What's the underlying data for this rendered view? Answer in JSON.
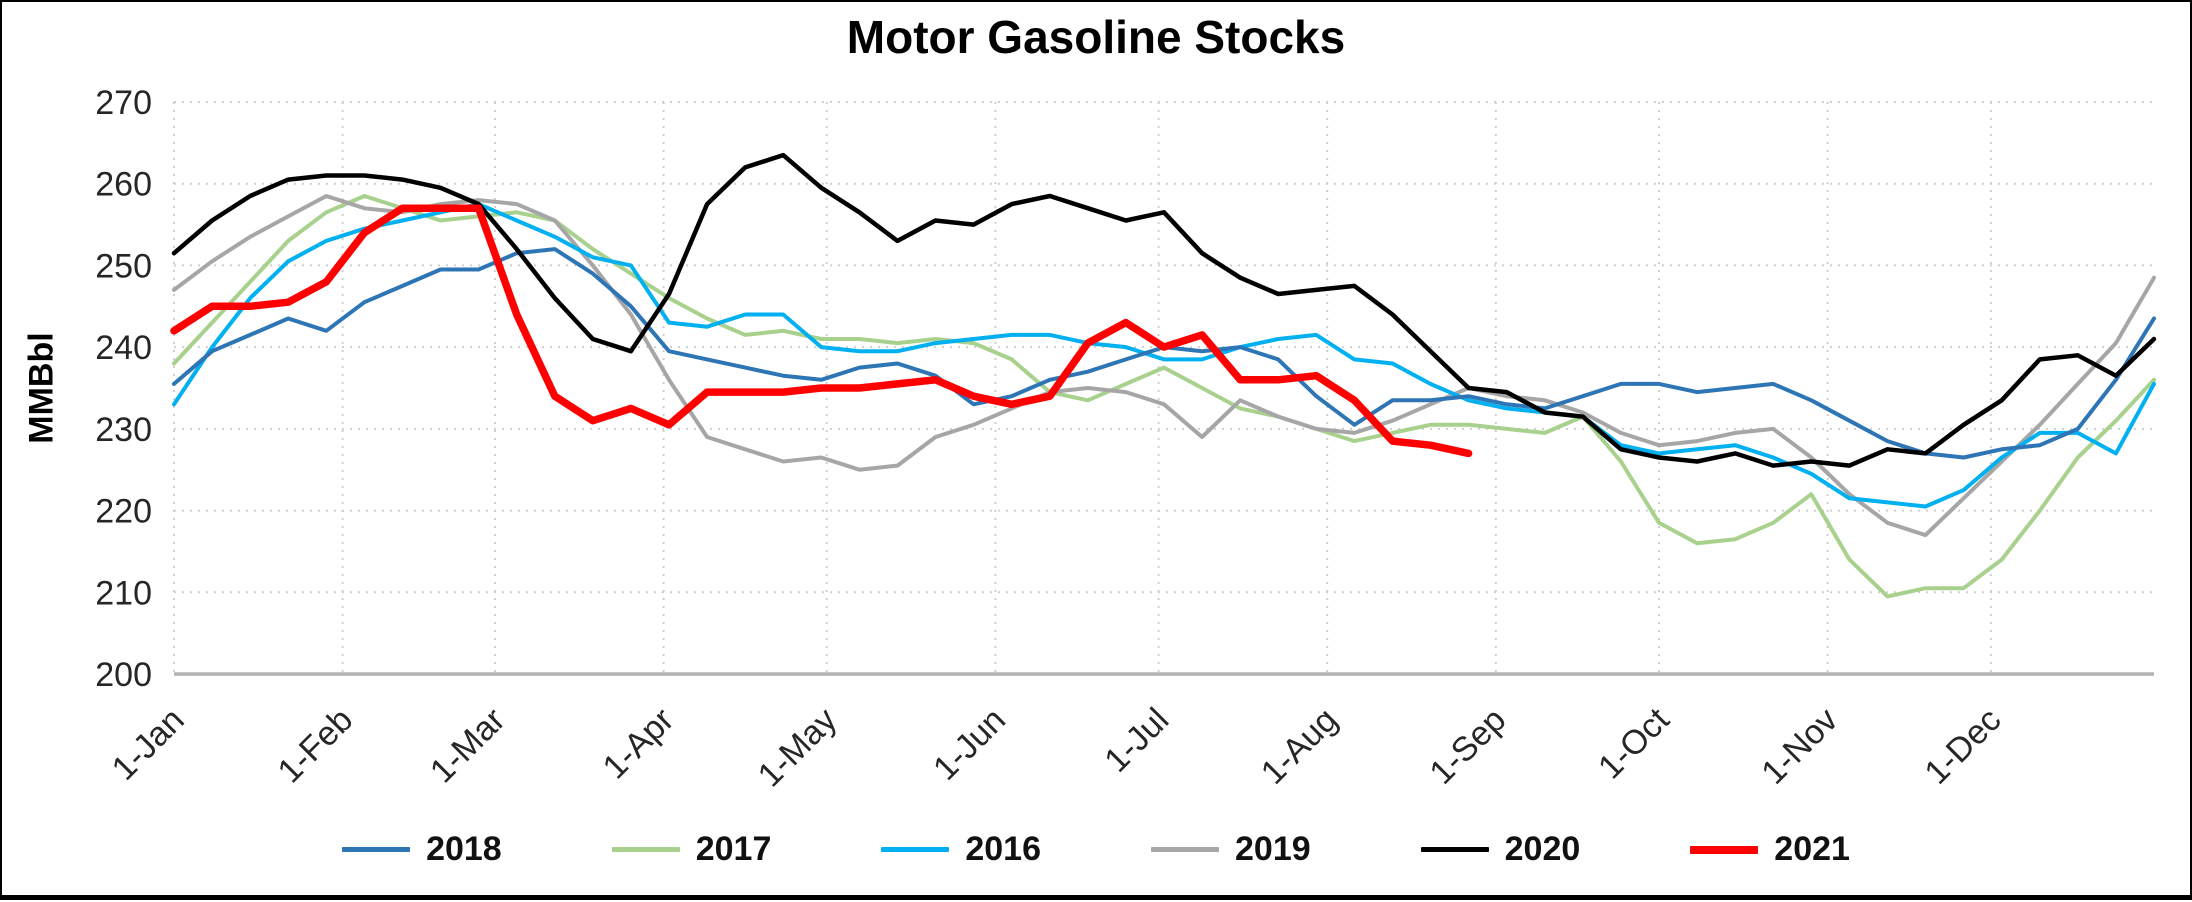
{
  "chart_data": {
    "type": "line",
    "title": "Motor Gasoline Stocks",
    "ylabel": "MMBbl",
    "ylim": [
      200,
      270
    ],
    "yticks": [
      200,
      210,
      220,
      230,
      240,
      250,
      260,
      270
    ],
    "grid": true,
    "legend_position": "bottom",
    "x_tick_labels": [
      "1-Jan",
      "1-Feb",
      "1-Mar",
      "1-Apr",
      "1-May",
      "1-Jun",
      "1-Jul",
      "1-Aug",
      "1-Sep",
      "1-Oct",
      "1-Nov",
      "1-Dec"
    ],
    "x_tick_days": [
      1,
      32,
      60,
      91,
      121,
      152,
      182,
      213,
      244,
      274,
      305,
      335
    ],
    "x_frequency": "weekly",
    "x_start_day": 1,
    "x_days_per_point": 7,
    "x_total_days": 365,
    "axis_color": "#b3b3b3",
    "gridline_color": "#cfcfcf",
    "tick_label_color": "#262626",
    "series": [
      {
        "name": "2018",
        "color": "#2E75B6",
        "line_width": 4,
        "z": 4,
        "values": [
          235.5,
          239.5,
          241.5,
          243.5,
          242,
          245.5,
          247.5,
          249.5,
          249.5,
          251.5,
          252,
          249,
          245,
          239.5,
          238.5,
          237.5,
          236.5,
          236,
          237.5,
          238,
          236.5,
          233,
          234,
          236,
          237,
          238.5,
          240,
          239.5,
          240,
          238.5,
          234,
          230.5,
          233.5,
          233.5,
          234,
          233,
          232.5,
          234,
          235.5,
          235.5,
          234.5,
          235,
          235.5,
          233.5,
          231,
          228.5,
          227,
          226.5,
          227.5,
          228,
          230,
          236,
          243.5
        ]
      },
      {
        "name": "2017",
        "color": "#A9D18E",
        "line_width": 4,
        "z": 1,
        "values": [
          238,
          243,
          248,
          253,
          256.5,
          258.5,
          257,
          255.5,
          256,
          256.5,
          255.5,
          252,
          249,
          246,
          243.5,
          241.5,
          242,
          241,
          241,
          240.5,
          241,
          240.5,
          238.5,
          234.5,
          233.5,
          235.5,
          237.5,
          235,
          232.5,
          231.5,
          230,
          228.5,
          229.5,
          230.5,
          230.5,
          230,
          229.5,
          231.5,
          226,
          218.5,
          216,
          216.5,
          218.5,
          222,
          214,
          209.5,
          210.5,
          210.5,
          214,
          220,
          226.5,
          231,
          236
        ]
      },
      {
        "name": "2016",
        "color": "#00B0F0",
        "line_width": 4,
        "z": 3,
        "values": [
          233,
          240,
          246,
          250.5,
          253,
          254.5,
          255.5,
          256.5,
          257.5,
          255.5,
          253.5,
          251,
          250,
          243,
          242.5,
          244,
          244,
          240,
          239.5,
          239.5,
          240.5,
          241,
          241.5,
          241.5,
          240.5,
          240,
          238.5,
          238.5,
          240,
          241,
          241.5,
          238.5,
          238,
          235.5,
          233.5,
          232.5,
          232,
          231.5,
          228,
          227,
          227.5,
          228,
          226.5,
          224.5,
          221.5,
          221,
          220.5,
          222.5,
          226.5,
          229.5,
          229.5,
          227,
          235.5
        ]
      },
      {
        "name": "2019",
        "color": "#A6A6A6",
        "line_width": 4,
        "z": 2,
        "values": [
          247,
          250.5,
          253.5,
          256,
          258.5,
          257,
          256.5,
          257.5,
          258,
          257.5,
          255.5,
          250,
          244,
          236,
          229,
          227.5,
          226,
          226.5,
          225,
          225.5,
          229,
          230.5,
          232.5,
          234.5,
          235,
          234.5,
          233,
          229,
          233.5,
          231.5,
          230,
          229.5,
          231,
          233,
          235,
          234,
          233.5,
          232,
          229.5,
          228,
          228.5,
          229.5,
          230,
          226.5,
          222,
          218.5,
          217,
          221.5,
          226,
          230.5,
          235.5,
          240.5,
          248.5
        ]
      },
      {
        "name": "2020",
        "color": "#000000",
        "line_width": 4.5,
        "z": 5,
        "values": [
          251.5,
          255.5,
          258.5,
          260.5,
          261,
          261,
          260.5,
          259.5,
          257.5,
          252,
          246,
          241,
          239.5,
          246.5,
          257.5,
          262,
          263.5,
          259.5,
          256.5,
          253,
          255.5,
          255,
          257.5,
          258.5,
          257,
          255.5,
          256.5,
          251.5,
          248.5,
          246.5,
          247,
          247.5,
          244,
          239.5,
          235,
          234.5,
          232,
          231.5,
          227.5,
          226.5,
          226,
          227,
          225.5,
          226,
          225.5,
          227.5,
          227,
          230.5,
          233.5,
          238.5,
          239,
          236.5,
          241
        ]
      },
      {
        "name": "2021",
        "color": "#FF0000",
        "line_width": 7.5,
        "z": 6,
        "values": [
          242,
          245,
          245,
          245.5,
          248,
          254,
          257,
          257,
          257,
          244,
          234,
          231,
          232.5,
          230.5,
          234.5,
          234.5,
          234.5,
          235,
          235,
          235.5,
          236,
          234,
          233,
          234,
          240.5,
          243,
          240,
          241.5,
          236,
          236,
          236.5,
          233.5,
          228.5,
          228,
          227
        ]
      }
    ],
    "legend_order": [
      "2018",
      "2017",
      "2016",
      "2019",
      "2020",
      "2021"
    ]
  }
}
